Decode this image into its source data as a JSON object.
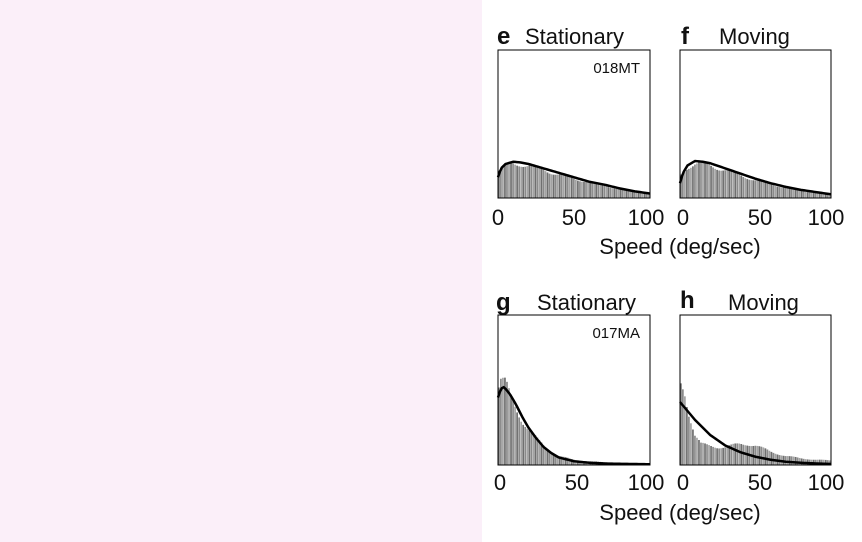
{
  "background": {
    "left_panel_color": "#fbeff9",
    "right_panel_color": "#ffffff"
  },
  "styles": {
    "histogram_color": "#8a8a8a",
    "fit_color": "#000000"
  },
  "xlabel": "Speed (deg/sec)",
  "chart_data": [
    {
      "type": "histogram_with_fit",
      "panel_letter": "e",
      "title": "Stationary",
      "annotation": "018MT",
      "xlim": [
        0,
        100
      ],
      "xticks": [
        0,
        50,
        100
      ],
      "ylim": [
        0,
        1
      ],
      "fit": {
        "x": [
          0,
          2,
          5,
          10,
          15,
          20,
          30,
          40,
          50,
          60,
          70,
          80,
          90,
          100
        ],
        "y": [
          0.14,
          0.2,
          0.23,
          0.245,
          0.24,
          0.23,
          0.2,
          0.17,
          0.14,
          0.11,
          0.09,
          0.065,
          0.045,
          0.03
        ]
      },
      "histogram": {
        "x": [
          0,
          5,
          10,
          15,
          20,
          30,
          40,
          50,
          60,
          70,
          80,
          90,
          100
        ],
        "y": [
          0.18,
          0.22,
          0.23,
          0.23,
          0.22,
          0.19,
          0.16,
          0.13,
          0.11,
          0.085,
          0.06,
          0.045,
          0.03
        ]
      }
    },
    {
      "type": "histogram_with_fit",
      "panel_letter": "f",
      "title": "Moving",
      "xlim": [
        0,
        100
      ],
      "xticks": [
        0,
        50,
        100
      ],
      "ylim": [
        0,
        1
      ],
      "fit": {
        "x": [
          0,
          2,
          5,
          10,
          15,
          20,
          30,
          40,
          50,
          60,
          70,
          80,
          90,
          100
        ],
        "y": [
          0.1,
          0.17,
          0.22,
          0.25,
          0.245,
          0.235,
          0.2,
          0.165,
          0.13,
          0.1,
          0.075,
          0.055,
          0.04,
          0.025
        ]
      },
      "histogram": {
        "x": [
          0,
          5,
          10,
          15,
          20,
          30,
          40,
          50,
          60,
          70,
          80,
          90,
          100
        ],
        "y": [
          0.15,
          0.21,
          0.23,
          0.23,
          0.22,
          0.19,
          0.155,
          0.12,
          0.095,
          0.07,
          0.05,
          0.035,
          0.025
        ]
      }
    },
    {
      "type": "histogram_with_fit",
      "panel_letter": "g",
      "title": "Stationary",
      "annotation": "017MA",
      "xlim": [
        0,
        100
      ],
      "xticks": [
        0,
        50,
        100
      ],
      "ylim": [
        0,
        1
      ],
      "fit": {
        "x": [
          0,
          2,
          4,
          8,
          12,
          16,
          20,
          25,
          30,
          35,
          40,
          50,
          60,
          70,
          80,
          100
        ],
        "y": [
          0.45,
          0.51,
          0.52,
          0.47,
          0.4,
          0.32,
          0.25,
          0.18,
          0.12,
          0.08,
          0.05,
          0.025,
          0.015,
          0.01,
          0.008,
          0.005
        ]
      },
      "histogram": {
        "x": [
          0,
          2,
          5,
          8,
          12,
          16,
          20,
          25,
          30,
          35,
          40,
          50,
          60,
          70,
          80,
          100
        ],
        "y": [
          0.5,
          0.56,
          0.54,
          0.46,
          0.38,
          0.3,
          0.24,
          0.18,
          0.13,
          0.09,
          0.06,
          0.035,
          0.025,
          0.018,
          0.012,
          0.008
        ]
      }
    },
    {
      "type": "histogram_with_fit",
      "panel_letter": "h",
      "title": "Moving",
      "xlim": [
        0,
        100
      ],
      "xticks": [
        0,
        50,
        100
      ],
      "ylim": [
        0,
        1
      ],
      "fit": {
        "x": [
          0,
          5,
          10,
          15,
          20,
          25,
          30,
          40,
          50,
          60,
          70,
          80,
          90,
          100
        ],
        "y": [
          0.42,
          0.36,
          0.3,
          0.25,
          0.2,
          0.165,
          0.13,
          0.085,
          0.055,
          0.035,
          0.022,
          0.015,
          0.01,
          0.007
        ]
      },
      "histogram": {
        "x": [
          0,
          3,
          6,
          10,
          14,
          18,
          25,
          30,
          35,
          40,
          45,
          50,
          55,
          60,
          70,
          80,
          90,
          100
        ],
        "y": [
          0.55,
          0.5,
          0.35,
          0.2,
          0.14,
          0.13,
          0.12,
          0.12,
          0.13,
          0.14,
          0.14,
          0.13,
          0.11,
          0.09,
          0.06,
          0.045,
          0.035,
          0.03
        ]
      }
    }
  ]
}
